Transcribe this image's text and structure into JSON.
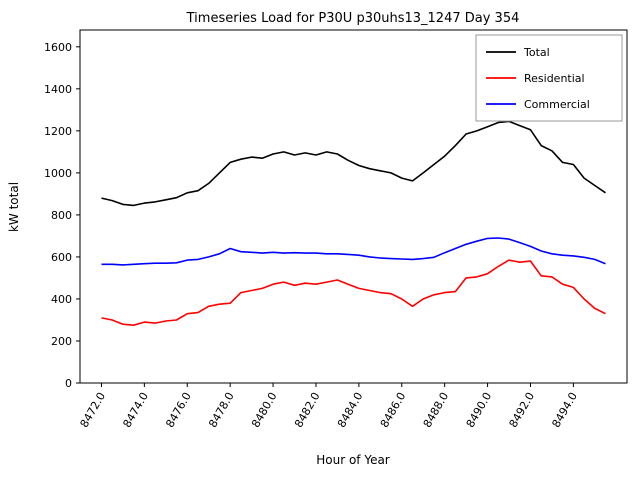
{
  "chart_data": {
    "type": "line",
    "title": "Timeseries Load for P30U p30uhs13_1247  Day 354",
    "xlabel": "Hour of Year",
    "ylabel": "kW total",
    "xlim": [
      8471.0,
      8496.5
    ],
    "ylim": [
      0,
      1680
    ],
    "xticks": [
      8472.0,
      8474.0,
      8476.0,
      8478.0,
      8480.0,
      8482.0,
      8484.0,
      8486.0,
      8488.0,
      8490.0,
      8492.0,
      8494.0
    ],
    "yticks": [
      0,
      200,
      400,
      600,
      800,
      1000,
      1200,
      1400,
      1600
    ],
    "grid": false,
    "legend_position": "upper right",
    "x": [
      8472.0,
      8472.5,
      8473.0,
      8473.5,
      8474.0,
      8474.5,
      8475.0,
      8475.5,
      8476.0,
      8476.5,
      8477.0,
      8477.5,
      8478.0,
      8478.5,
      8479.0,
      8479.5,
      8480.0,
      8480.5,
      8481.0,
      8481.5,
      8482.0,
      8482.5,
      8483.0,
      8483.5,
      8484.0,
      8484.5,
      8485.0,
      8485.5,
      8486.0,
      8486.5,
      8487.0,
      8487.5,
      8488.0,
      8488.5,
      8489.0,
      8489.5,
      8490.0,
      8490.5,
      8491.0,
      8491.5,
      8492.0,
      8492.5,
      8493.0,
      8493.5,
      8494.0,
      8494.5,
      8495.0,
      8495.5
    ],
    "series": [
      {
        "name": "Total",
        "color": "#000000",
        "values": [
          880,
          868,
          850,
          845,
          856,
          862,
          872,
          882,
          905,
          915,
          950,
          1000,
          1050,
          1065,
          1075,
          1070,
          1090,
          1100,
          1085,
          1095,
          1085,
          1100,
          1090,
          1060,
          1035,
          1020,
          1010,
          1000,
          975,
          962,
          1000,
          1040,
          1080,
          1130,
          1185,
          1200,
          1220,
          1240,
          1245,
          1225,
          1205,
          1130,
          1105,
          1050,
          1040,
          975,
          940,
          905
        ]
      },
      {
        "name": "Residential",
        "color": "#ff0000",
        "values": [
          310,
          300,
          280,
          275,
          290,
          285,
          295,
          300,
          330,
          335,
          365,
          375,
          380,
          430,
          440,
          450,
          470,
          480,
          465,
          475,
          470,
          480,
          490,
          470,
          450,
          440,
          430,
          425,
          400,
          365,
          400,
          420,
          430,
          435,
          500,
          505,
          520,
          555,
          585,
          575,
          580,
          510,
          505,
          470,
          455,
          400,
          355,
          330
        ]
      },
      {
        "name": "Commercial",
        "color": "#0000ff",
        "values": [
          565,
          565,
          562,
          565,
          568,
          570,
          570,
          572,
          585,
          588,
          600,
          615,
          640,
          625,
          622,
          618,
          622,
          618,
          620,
          618,
          618,
          615,
          615,
          612,
          608,
          600,
          595,
          592,
          590,
          588,
          592,
          598,
          620,
          640,
          660,
          675,
          688,
          690,
          685,
          668,
          650,
          628,
          615,
          608,
          605,
          598,
          588,
          568
        ]
      }
    ]
  }
}
